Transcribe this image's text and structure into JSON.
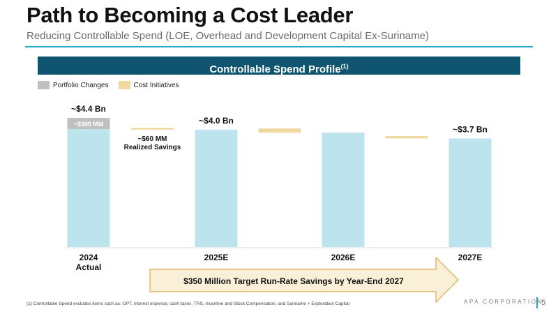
{
  "page": {
    "title": "Path to Becoming a Cost Leader",
    "subtitle": "Reducing Controllable Spend (LOE, Overhead and Development Capital Ex-Suriname)",
    "banner_title": "Controllable Spend Profile",
    "banner_sup": "(1)",
    "legend": [
      {
        "label": "Portfolio Changes",
        "color": "#c0c0c0"
      },
      {
        "label": "Cost Initiatives",
        "color": "#f0d9a0"
      }
    ],
    "target_text": "$350 Million Target Run-Rate Savings by Year-End 2027",
    "footnote": "(1) Controllable Spend excludes items such as: GPT, interest expense, cash taxes, TRS, Incentive and Stock Compensation, and Suriname + Exploration Capital",
    "brand": "APA CORPORATION",
    "page_number": "5"
  },
  "colors": {
    "bar": "#bde3ec",
    "portfolio": "#c0c0c0",
    "cost": "#f0d9a0",
    "banner": "#0f5570",
    "accent": "#23a8c4",
    "arrow_fill": "#faf0d8",
    "arrow_stroke": "#e2b96a"
  },
  "chart_data": {
    "type": "bar",
    "categories": [
      "2024\nActual",
      "2025E",
      "2026E",
      "2027E"
    ],
    "totals": [
      4.4,
      4.0,
      3.9,
      3.7
    ],
    "portfolio_changes": [
      {
        "category_index": 0,
        "value": 0.38,
        "label": "~$380 MM"
      }
    ],
    "cost_initiatives": [
      {
        "between": [
          0,
          1
        ],
        "value": 0.06,
        "label": "~$60 MM\nRealized Savings"
      },
      {
        "between": [
          1,
          2
        ],
        "value": 0.14,
        "label": ""
      },
      {
        "between": [
          2,
          3
        ],
        "value": 0.08,
        "label": ""
      }
    ],
    "bar_labels": [
      "~$4.4 Bn",
      "~$4.0 Bn",
      "",
      "~$3.7 Bn"
    ],
    "unit": "$ Bn"
  }
}
